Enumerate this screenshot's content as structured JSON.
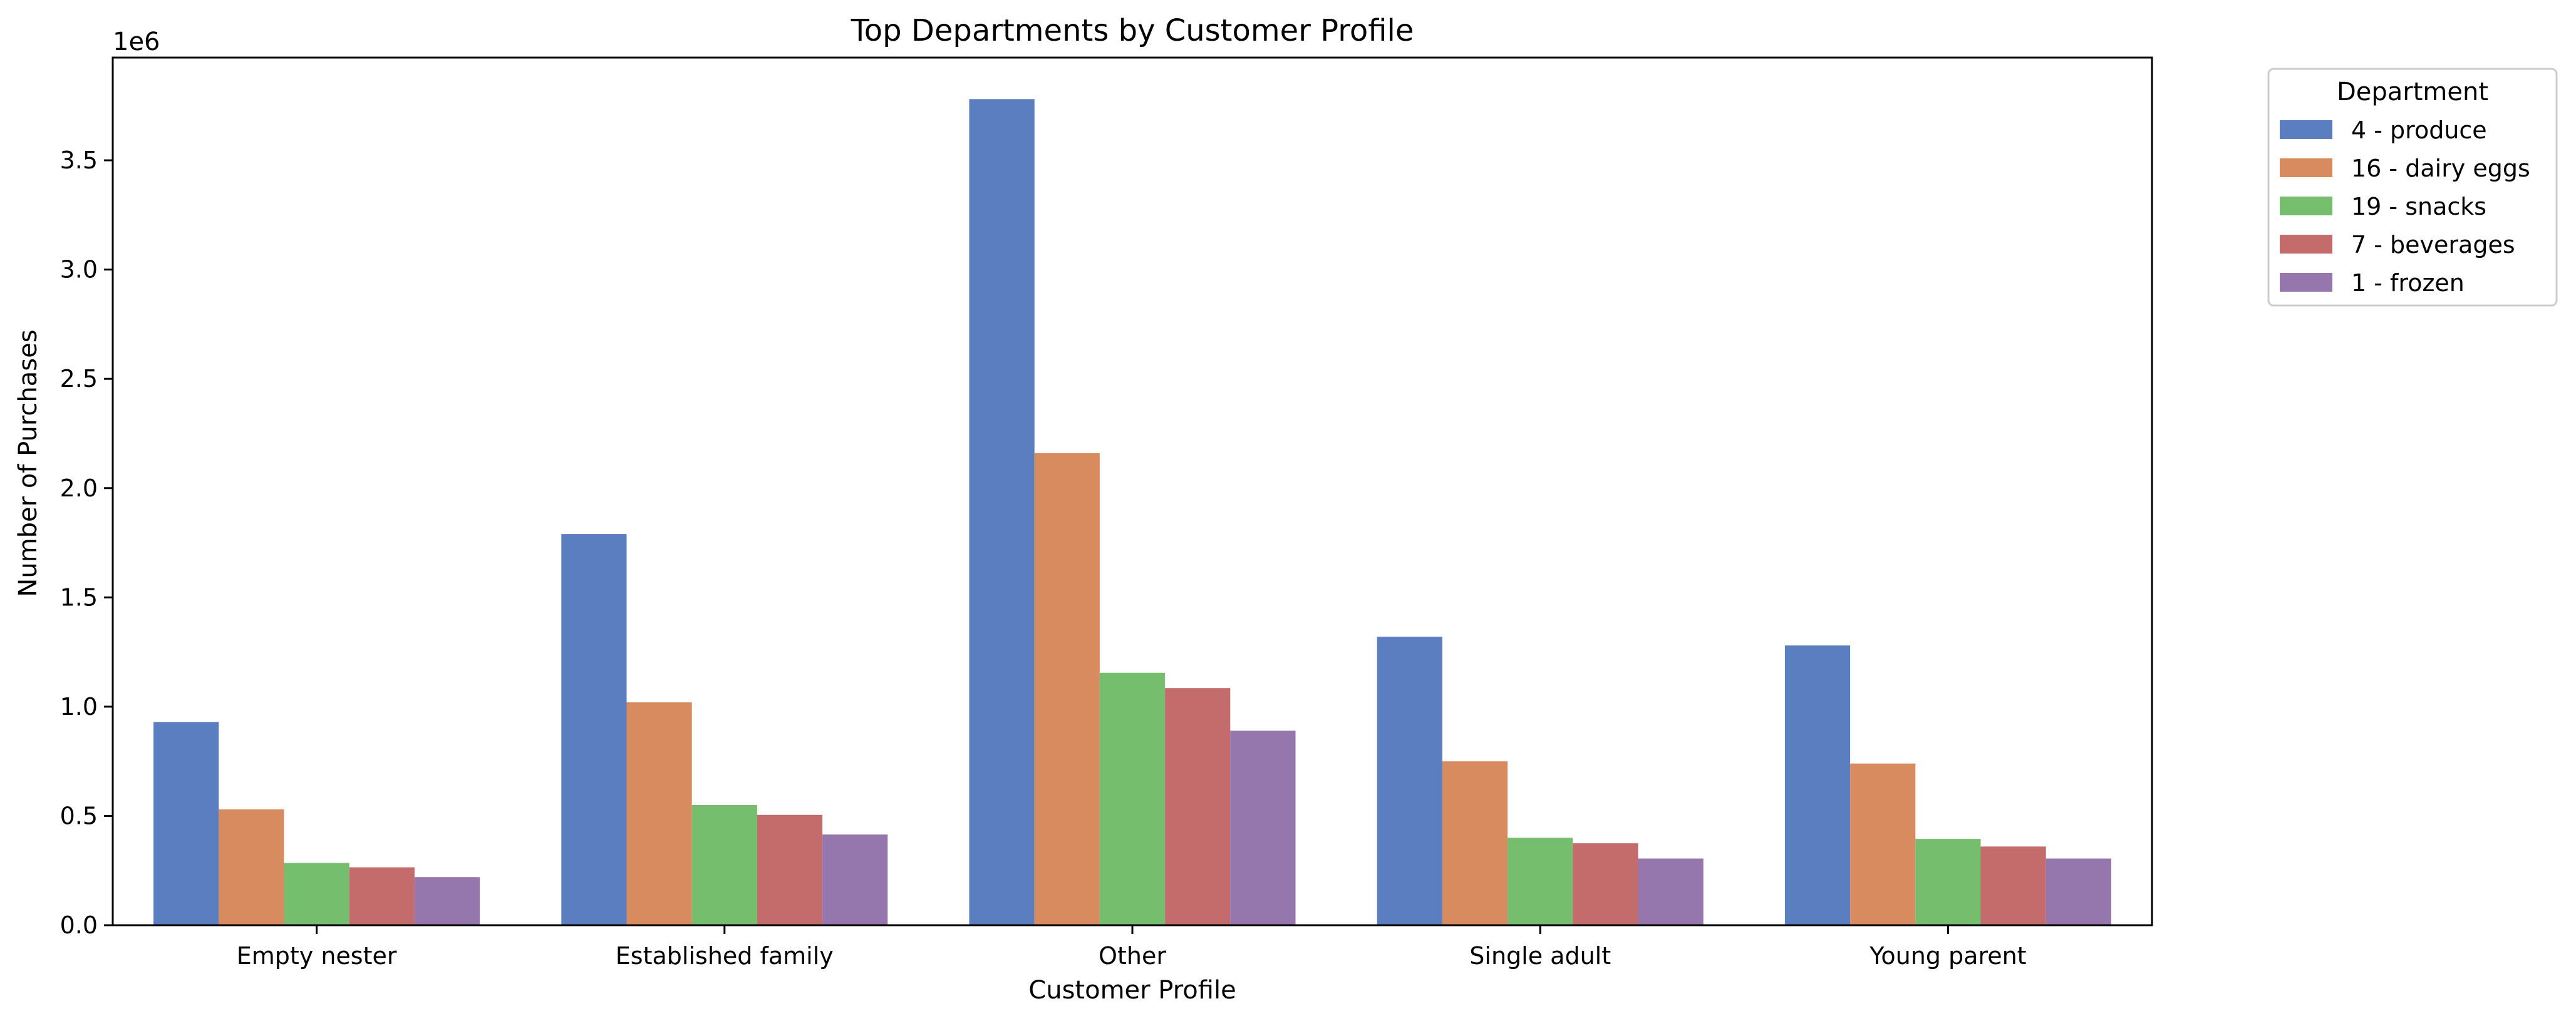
{
  "chart_data": {
    "type": "bar",
    "title": "Top Departments by Customer Profile",
    "xlabel": "Customer Profile",
    "ylabel": "Number of Purchases",
    "scale_label": "1e6",
    "ylim": [
      0,
      3.97
    ],
    "yticks": [
      0.0,
      0.5,
      1.0,
      1.5,
      2.0,
      2.5,
      3.0,
      3.5
    ],
    "ytick_labels": [
      "0.0",
      "0.5",
      "1.0",
      "1.5",
      "2.0",
      "2.5",
      "3.0",
      "3.5"
    ],
    "categories": [
      "Empty nester",
      "Established family",
      "Other",
      "Single adult",
      "Young parent"
    ],
    "legend": {
      "title": "Department",
      "placement": "outside-top-right"
    },
    "series": [
      {
        "name": "4 - produce",
        "color": "#5b7ec0",
        "values": [
          0.93,
          1.79,
          3.78,
          1.32,
          1.28
        ]
      },
      {
        "name": "16 - dairy eggs",
        "color": "#d88b5e",
        "values": [
          0.53,
          1.02,
          2.16,
          0.75,
          0.74
        ]
      },
      {
        "name": "19 - snacks",
        "color": "#74be6d",
        "values": [
          0.285,
          0.55,
          1.155,
          0.4,
          0.395
        ]
      },
      {
        "name": "7 - beverages",
        "color": "#c46c6c",
        "values": [
          0.265,
          0.505,
          1.085,
          0.375,
          0.36
        ]
      },
      {
        "name": "1 - frozen",
        "color": "#9577ad",
        "values": [
          0.22,
          0.415,
          0.89,
          0.305,
          0.305
        ]
      }
    ]
  }
}
